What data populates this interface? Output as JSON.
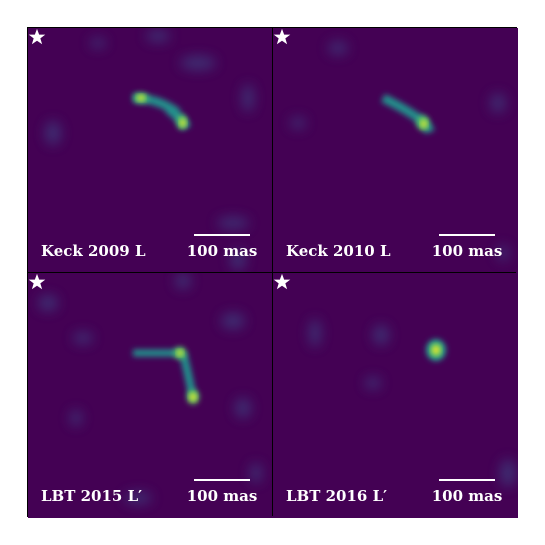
{
  "panels": [
    {
      "label": "Keck 2009 L",
      "scale": "100 mas"
    },
    {
      "label": "Keck 2010 L",
      "scale": "100 mas"
    },
    {
      "label": "LBT 2015 L′",
      "scale": "100 mas"
    },
    {
      "label": "LBT 2016 L′",
      "scale": "100 mas"
    }
  ],
  "colors": {
    "background": "#440154",
    "faint": "#3b528b",
    "mid": "#21918c",
    "bright": "#5ec962",
    "peak": "#fde725",
    "marker": "#ffffff"
  }
}
